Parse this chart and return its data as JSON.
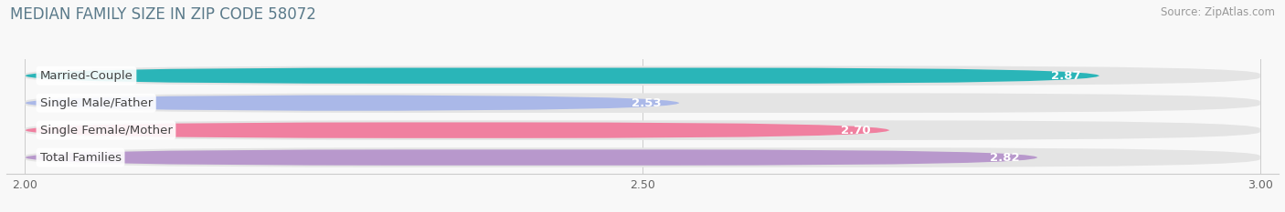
{
  "title": "MEDIAN FAMILY SIZE IN ZIP CODE 58072",
  "source": "Source: ZipAtlas.com",
  "categories": [
    "Married-Couple",
    "Single Male/Father",
    "Single Female/Mother",
    "Total Families"
  ],
  "values": [
    2.87,
    2.53,
    2.7,
    2.82
  ],
  "bar_colors": [
    "#2ab5b8",
    "#aab8e8",
    "#f080a0",
    "#b898cc"
  ],
  "xmin": 2.0,
  "xmax": 3.0,
  "xticks": [
    2.0,
    2.5,
    3.0
  ],
  "xtick_labels": [
    "2.00",
    "2.50",
    "3.00"
  ],
  "label_fontsize": 9.5,
  "value_fontsize": 9.5,
  "title_fontsize": 12,
  "source_fontsize": 8.5,
  "background_color": "#f8f8f8",
  "title_color": "#5a7a8a",
  "source_color": "#999999",
  "label_text_color": "#444444",
  "bar_bg_color": "#e4e4e4",
  "value_inside_color": "#ffffff",
  "value_outside_color": "#666666",
  "inside_threshold": 0.25
}
